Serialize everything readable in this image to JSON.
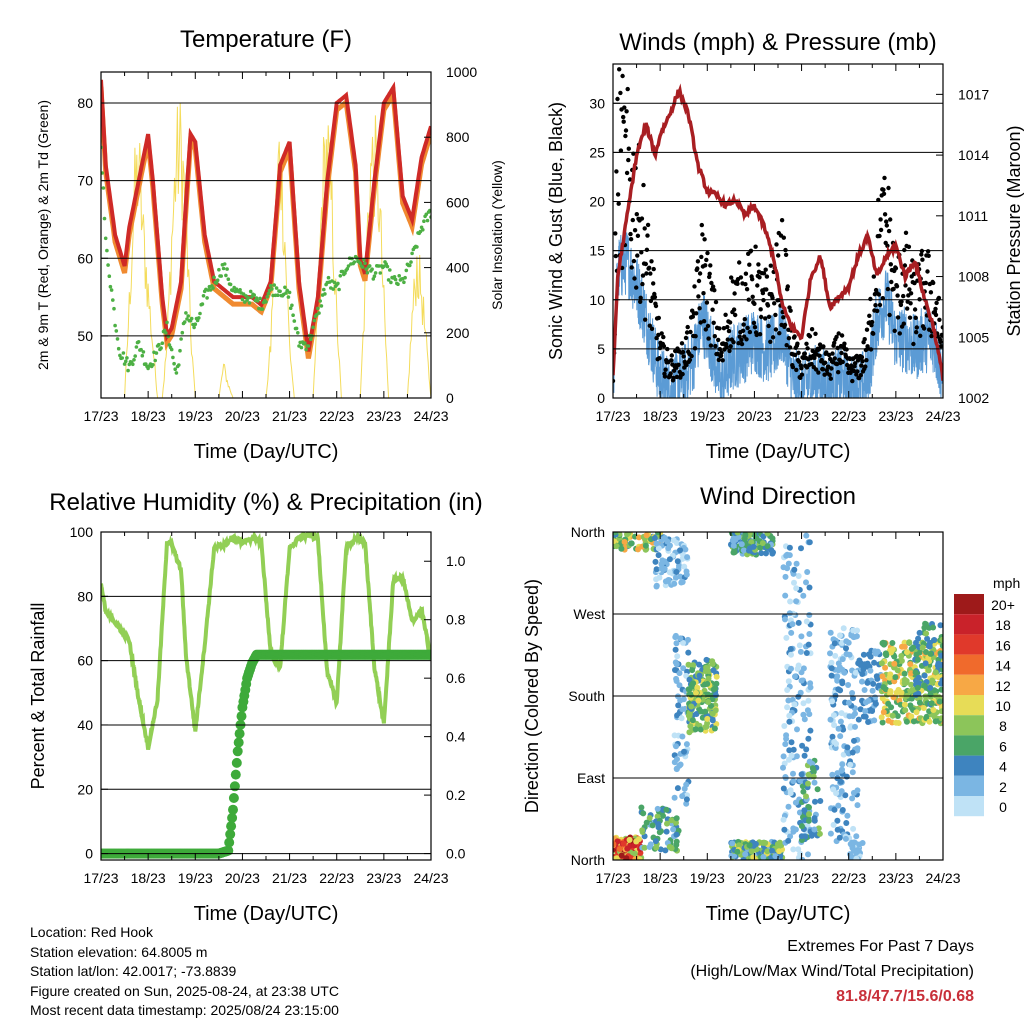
{
  "colors": {
    "temp_2m": "#cf2a27",
    "temp_9m": "#f08a30",
    "dewpoint": "#4db044",
    "solar": "#f4dc5c",
    "gust": "#000000",
    "wind": "#5b9bd5",
    "pressure": "#a81e22",
    "rh": "#92cf55",
    "precip": "#3eaa3a",
    "extremes": "#c8303a"
  },
  "x_ticks": [
    "17/23",
    "18/23",
    "19/23",
    "20/23",
    "21/23",
    "22/23",
    "23/23",
    "24/23"
  ],
  "chart_data": [
    {
      "type": "line",
      "title": "Temperature (F)",
      "xlabel": "Time (Day/UTC)",
      "ylabel": "2m & 9m T (Red, Orange) & 2m Td (Green)",
      "ylabel_right": "Solar Insolation (Yellow)",
      "ylim": [
        42,
        84
      ],
      "yticks": [
        50,
        60,
        70,
        80
      ],
      "ylim_right": [
        0,
        1000
      ],
      "yticks_right": [
        0,
        200,
        400,
        600,
        800,
        1000
      ],
      "grid": true,
      "series": [
        {
          "key": "temp",
          "x": [
            0,
            0.1,
            0.3,
            0.5,
            0.6,
            0.8,
            1.0,
            1.1,
            1.3,
            1.4,
            1.5,
            1.7,
            1.8,
            1.9,
            2.0,
            2.2,
            2.4,
            2.6,
            2.8,
            3.0,
            3.2,
            3.4,
            3.6,
            3.8,
            4.0,
            4.2,
            4.4,
            4.6,
            4.8,
            5.0,
            5.2,
            5.4,
            5.5,
            5.6,
            5.8,
            6.0,
            6.2,
            6.4,
            6.6,
            6.8,
            7.0
          ],
          "y": [
            83,
            72,
            63,
            59,
            64,
            70,
            76,
            70,
            55,
            50,
            51,
            57,
            67,
            76,
            75,
            63,
            57,
            56,
            55,
            55,
            55,
            54,
            57,
            72,
            75,
            57,
            48,
            55,
            70,
            80,
            81,
            72,
            60,
            58,
            70,
            80,
            82,
            68,
            65,
            73,
            77
          ]
        },
        {
          "key": "dewpoint",
          "x": [
            0,
            0.1,
            0.3,
            0.4,
            0.6,
            0.8,
            1.0,
            1.2,
            1.4,
            1.6,
            1.8,
            2.0,
            2.2,
            2.4,
            2.6,
            2.8,
            3.0,
            3.2,
            3.4,
            3.6,
            3.8,
            4.0,
            4.2,
            4.4,
            4.6,
            4.8,
            5.0,
            5.2,
            5.4,
            5.6,
            5.8,
            6.0,
            6.2,
            6.4,
            6.6,
            6.8,
            7.0
          ],
          "y": [
            75,
            62,
            52,
            48,
            46,
            49,
            46,
            48,
            51,
            45,
            53,
            51,
            55,
            57,
            59,
            56,
            55,
            55,
            54,
            56,
            56,
            55,
            49,
            49,
            53,
            57,
            56,
            59,
            60,
            59,
            58,
            59,
            57,
            57,
            60,
            64,
            66
          ]
        },
        {
          "key": "solar",
          "x": [
            0,
            0.5,
            0.6,
            0.7,
            0.8,
            0.9,
            1.0,
            1.2,
            1.3,
            1.4,
            1.5,
            1.6,
            1.7,
            1.8,
            1.9,
            2.0,
            2.1,
            2.2,
            2.3,
            2.5,
            2.6,
            2.7,
            2.8,
            3.0,
            3.5,
            3.6,
            3.7,
            3.8,
            3.9,
            4.0,
            4.1,
            4.3,
            4.5,
            4.6,
            4.7,
            4.8,
            4.9,
            5.0,
            5.1,
            5.3,
            5.5,
            5.6,
            5.7,
            5.8,
            5.9,
            6.0,
            6.1,
            6.3,
            6.5,
            6.6,
            6.7,
            6.8,
            6.9,
            7.0
          ],
          "y": [
            0,
            0,
            350,
            750,
            880,
            600,
            400,
            0,
            0,
            200,
            600,
            900,
            950,
            700,
            250,
            0,
            0,
            0,
            0,
            0,
            120,
            50,
            0,
            0,
            0,
            200,
            700,
            950,
            600,
            200,
            0,
            0,
            0,
            350,
            800,
            950,
            700,
            300,
            0,
            0,
            0,
            400,
            850,
            900,
            750,
            350,
            0,
            0,
            0,
            300,
            500,
            400,
            200,
            0
          ]
        }
      ]
    },
    {
      "type": "line",
      "title": "Winds (mph) & Pressure (mb)",
      "xlabel": "Time (Day/UTC)",
      "ylabel": "Sonic Wind & Gust (Blue, Black)",
      "ylabel_right": "Station Pressure (Maroon)",
      "ylim": [
        0,
        34
      ],
      "yticks": [
        0,
        5,
        10,
        15,
        20,
        25,
        30
      ],
      "ylim_right": [
        1002,
        1018.5
      ],
      "yticks_right": [
        1002,
        1005,
        1008,
        1011,
        1014,
        1017
      ],
      "grid": true,
      "series": [
        {
          "key": "pressure",
          "x": [
            0,
            0.1,
            0.3,
            0.5,
            0.7,
            0.9,
            1.0,
            1.2,
            1.4,
            1.6,
            1.8,
            2.0,
            2.2,
            2.4,
            2.6,
            2.8,
            3.0,
            3.2,
            3.4,
            3.6,
            3.8,
            4.0,
            4.2,
            4.4,
            4.6,
            4.8,
            5.0,
            5.2,
            5.4,
            5.6,
            5.8,
            6.0,
            6.2,
            6.4,
            6.6,
            6.8,
            7.0
          ],
          "y": [
            1003,
            1008,
            1011,
            1014,
            1015.5,
            1014,
            1015,
            1016,
            1017.2,
            1016,
            1013.5,
            1012.2,
            1012,
            1011.5,
            1011.8,
            1011,
            1011.5,
            1010.5,
            1009,
            1006.5,
            1005.5,
            1005,
            1008,
            1009,
            1006.5,
            1007,
            1007.5,
            1009,
            1010,
            1008,
            1009,
            1009.5,
            1008,
            1008.8,
            1007,
            1005.5,
            1003
          ]
        },
        {
          "key": "gust_band",
          "x": [
            0,
            0.1,
            0.3,
            0.6,
            0.8,
            1.0,
            1.2,
            1.5,
            1.7,
            1.9,
            2.1,
            2.3,
            2.5,
            2.8,
            3.0,
            3.2,
            3.4,
            3.6,
            3.8,
            4.0,
            4.2,
            4.4,
            4.6,
            4.8,
            5.0,
            5.2,
            5.4,
            5.6,
            5.8,
            6.0,
            6.2,
            6.4,
            6.6,
            6.8,
            7.0
          ],
          "y": [
            2,
            24,
            22,
            17,
            11,
            5,
            3,
            4,
            7,
            13,
            9,
            4,
            9,
            10,
            11,
            9,
            10,
            13,
            5,
            3,
            5,
            4,
            3,
            5,
            3,
            3,
            5,
            14,
            17,
            10,
            12,
            9,
            11,
            10,
            5
          ]
        },
        {
          "key": "wind_band",
          "x": [
            0,
            0.1,
            0.3,
            0.6,
            0.8,
            1.0,
            1.2,
            1.5,
            1.7,
            1.9,
            2.1,
            2.3,
            2.5,
            2.8,
            3.0,
            3.2,
            3.4,
            3.6,
            3.8,
            4.0,
            4.2,
            4.4,
            4.6,
            4.8,
            5.0,
            5.2,
            5.4,
            5.6,
            5.8,
            6.0,
            6.2,
            6.4,
            6.6,
            6.8,
            7.0
          ],
          "y": [
            1,
            13,
            14,
            10,
            6,
            2,
            1,
            2,
            4,
            8,
            5,
            1,
            4,
            5,
            6,
            5,
            5,
            7,
            2,
            1,
            2,
            2,
            1,
            2,
            1,
            1,
            2,
            8,
            10,
            6,
            6,
            5,
            6,
            6,
            2
          ]
        }
      ]
    },
    {
      "type": "line",
      "title": "Relative Humidity (%) & Precipitation (in)",
      "xlabel": "Time (Day/UTC)",
      "ylabel": "Percent & Total Rainfall",
      "ylim": [
        -2,
        100
      ],
      "yticks": [
        0,
        20,
        40,
        60,
        80,
        100
      ],
      "ylim_right": [
        -0.022,
        1.1
      ],
      "yticks_right": [
        0.0,
        0.2,
        0.4,
        0.6,
        0.8,
        1.0
      ],
      "grid": true,
      "series": [
        {
          "key": "rh",
          "x": [
            0,
            0.1,
            0.3,
            0.5,
            0.6,
            0.8,
            1.0,
            1.2,
            1.4,
            1.5,
            1.7,
            1.8,
            2.0,
            2.2,
            2.4,
            2.6,
            2.8,
            3.0,
            3.2,
            3.4,
            3.6,
            3.8,
            4.0,
            4.2,
            4.4,
            4.6,
            4.8,
            5.0,
            5.2,
            5.4,
            5.6,
            5.8,
            6.0,
            6.2,
            6.4,
            6.6,
            6.8,
            7.0
          ],
          "y": [
            84,
            75,
            72,
            68,
            66,
            48,
            33,
            48,
            97,
            96,
            88,
            62,
            38,
            65,
            95,
            96,
            98,
            97,
            98,
            97,
            62,
            58,
            95,
            98,
            99,
            98,
            56,
            47,
            95,
            98,
            97,
            58,
            40,
            85,
            86,
            72,
            76,
            60
          ]
        },
        {
          "key": "precip",
          "x": [
            0,
            0.5,
            1.0,
            1.5,
            2.0,
            2.5,
            2.7,
            2.8,
            2.9,
            3.0,
            3.1,
            3.2,
            3.3,
            3.5,
            4.0,
            5.0,
            6.0,
            7.0
          ],
          "y": [
            0,
            0,
            0,
            0,
            0,
            0,
            0.01,
            0.15,
            0.35,
            0.5,
            0.6,
            0.65,
            0.68,
            0.68,
            0.68,
            0.68,
            0.68,
            0.68
          ]
        }
      ]
    },
    {
      "type": "scatter",
      "title": "Wind Direction",
      "xlabel": "Time (Day/UTC)",
      "ylabel": "Direction (Colored By Speed)",
      "ylim": [
        0,
        360
      ],
      "ytick_labels": [
        "North",
        "East",
        "South",
        "West",
        "North"
      ],
      "yticks": [
        0,
        90,
        180,
        270,
        360
      ],
      "grid": true,
      "legend": {
        "title": "mph",
        "labels": [
          "20+",
          "18",
          "16",
          "14",
          "12",
          "10",
          "8",
          "6",
          "4",
          "2",
          "0"
        ],
        "colors": [
          "#9e1a1a",
          "#c9222a",
          "#e0392b",
          "#f06a2c",
          "#f7a845",
          "#e7dc57",
          "#8cc55a",
          "#4aa567",
          "#3e84bf",
          "#7bb6e3",
          "#bfe2f6"
        ],
        "placement": "right"
      },
      "clusters": [
        {
          "x0": 0.0,
          "x1": 0.6,
          "d0": 0,
          "d1": 25,
          "speed": [
            8,
            20
          ],
          "n": 140
        },
        {
          "x0": 0.0,
          "x1": 1.0,
          "d0": 340,
          "d1": 360,
          "speed": [
            4,
            12
          ],
          "n": 60
        },
        {
          "x0": 0.9,
          "x1": 1.6,
          "d0": 300,
          "d1": 355,
          "speed": [
            0,
            4
          ],
          "n": 80
        },
        {
          "x0": 0.6,
          "x1": 1.4,
          "d0": 10,
          "d1": 60,
          "speed": [
            2,
            8
          ],
          "n": 70
        },
        {
          "x0": 1.3,
          "x1": 1.6,
          "d0": 60,
          "d1": 250,
          "speed": [
            0,
            4
          ],
          "n": 70
        },
        {
          "x0": 1.6,
          "x1": 2.2,
          "d0": 140,
          "d1": 220,
          "speed": [
            4,
            10
          ],
          "n": 160
        },
        {
          "x0": 2.5,
          "x1": 3.4,
          "d0": 335,
          "d1": 360,
          "speed": [
            2,
            8
          ],
          "n": 110
        },
        {
          "x0": 2.5,
          "x1": 3.6,
          "d0": 0,
          "d1": 20,
          "speed": [
            2,
            10
          ],
          "n": 160
        },
        {
          "x0": 3.6,
          "x1": 4.2,
          "d0": 0,
          "d1": 360,
          "speed": [
            0,
            4
          ],
          "n": 160
        },
        {
          "x0": 4.0,
          "x1": 4.4,
          "d0": 20,
          "d1": 110,
          "speed": [
            2,
            8
          ],
          "n": 60
        },
        {
          "x0": 4.6,
          "x1": 5.2,
          "d0": 20,
          "d1": 260,
          "speed": [
            0,
            4
          ],
          "n": 160
        },
        {
          "x0": 5.0,
          "x1": 5.3,
          "d0": 0,
          "d1": 20,
          "speed": [
            0,
            3
          ],
          "n": 30
        },
        {
          "x0": 5.2,
          "x1": 5.7,
          "d0": 150,
          "d1": 230,
          "speed": [
            1,
            5
          ],
          "n": 60
        },
        {
          "x0": 5.7,
          "x1": 7.0,
          "d0": 150,
          "d1": 240,
          "speed": [
            5,
            12
          ],
          "n": 260
        },
        {
          "x0": 6.4,
          "x1": 7.0,
          "d0": 170,
          "d1": 260,
          "speed": [
            3,
            8
          ],
          "n": 70
        }
      ]
    }
  ],
  "footer": {
    "location": "Location: Red Hook",
    "elevation": "Station elevation: 64.8005 m",
    "latlon": "Station lat/lon: 42.0017; -73.8839",
    "created": "Figure created on Sun, 2025-08-24, at 23:38 UTC",
    "recent": "Most recent data timestamp: 2025/08/24 23:15:00"
  },
  "extremes": {
    "heading": "Extremes For Past 7 Days",
    "subheading": "(High/Low/Max Wind/Total Precipitation)",
    "value": "81.8/47.7/15.6/0.68"
  }
}
